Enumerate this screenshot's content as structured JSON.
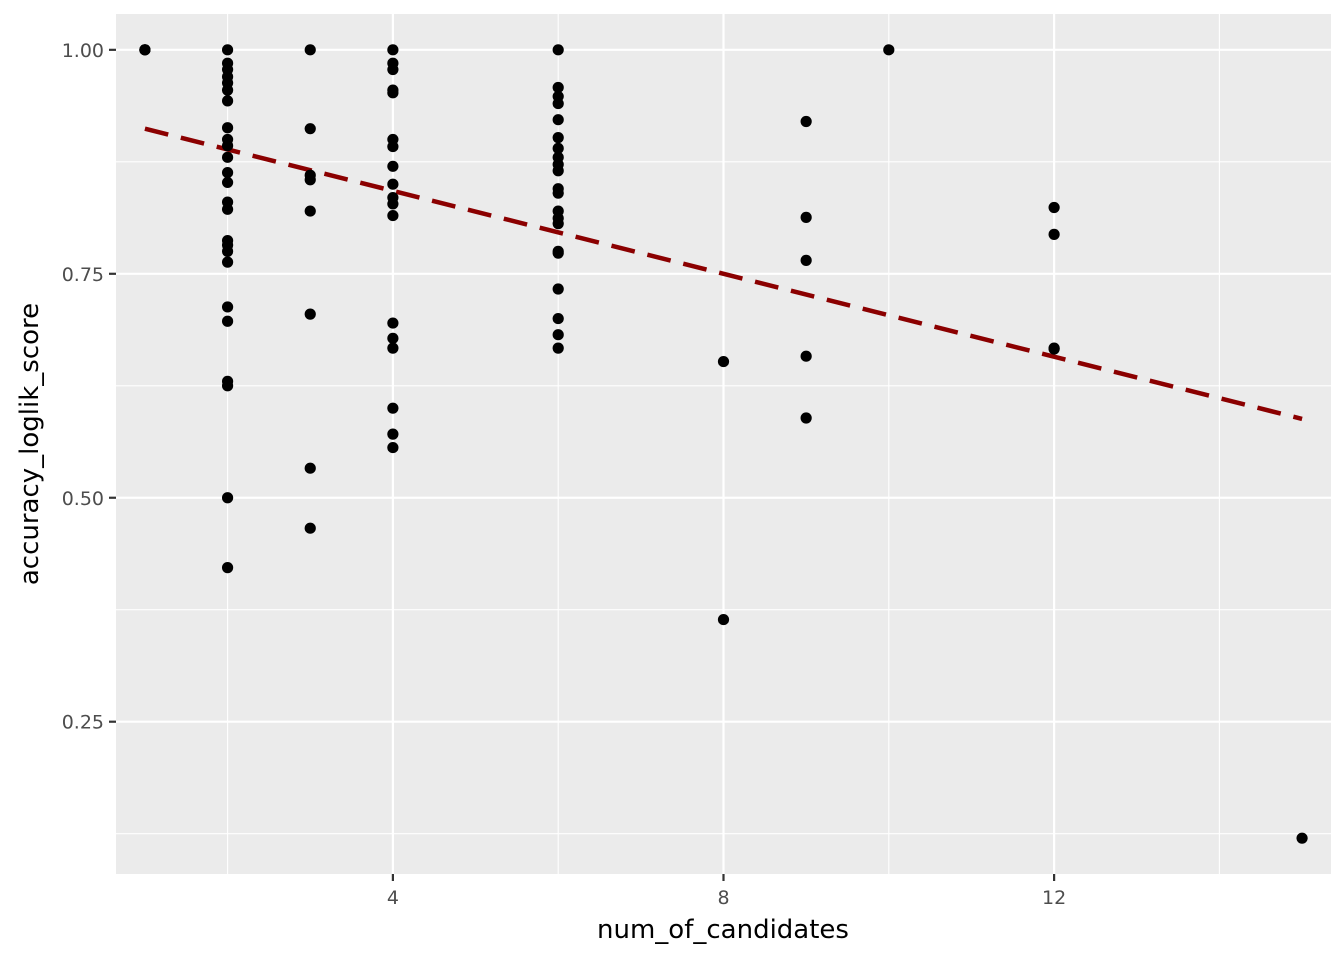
{
  "chart_data": {
    "type": "scatter",
    "xlabel": "num_of_candidates",
    "ylabel": "accuracy_loglik_score",
    "xlim": [
      0.65,
      15.35
    ],
    "ylim": [
      0.08,
      1.04
    ],
    "x_ticks": [
      4,
      8,
      12
    ],
    "x_tick_labels": [
      "4",
      "8",
      "12"
    ],
    "x_minor_ticks": [
      2,
      6,
      10,
      14
    ],
    "y_ticks": [
      0.25,
      0.5,
      0.75,
      1.0
    ],
    "y_tick_labels": [
      "0.25",
      "0.50",
      "0.75",
      "1.00"
    ],
    "y_minor_ticks": [
      0.125,
      0.375,
      0.625,
      0.875
    ],
    "grid": true,
    "legend": "none",
    "colors": {
      "panel": "#ebebeb",
      "grid": "#ffffff",
      "points": "#000000",
      "trend_line": "#8b0000"
    },
    "series": [
      {
        "points": [
          [
            1,
            1.0
          ],
          [
            1,
            1.0
          ],
          [
            1,
            1.0
          ],
          [
            2,
            1.0
          ],
          [
            2,
            0.985
          ],
          [
            2,
            0.978
          ],
          [
            2,
            0.97
          ],
          [
            2,
            0.963
          ],
          [
            2,
            0.955
          ],
          [
            2,
            0.943
          ],
          [
            2,
            0.913
          ],
          [
            2,
            0.9
          ],
          [
            2,
            0.893
          ],
          [
            2,
            0.88
          ],
          [
            2,
            0.863
          ],
          [
            2,
            0.852
          ],
          [
            2,
            0.83
          ],
          [
            2,
            0.822
          ],
          [
            2,
            0.787
          ],
          [
            2,
            0.782
          ],
          [
            2,
            0.775
          ],
          [
            2,
            0.763
          ],
          [
            2,
            0.713
          ],
          [
            2,
            0.697
          ],
          [
            2,
            0.63
          ],
          [
            2,
            0.625
          ],
          [
            2,
            0.5
          ],
          [
            2,
            0.422
          ],
          [
            3,
            1.0
          ],
          [
            3,
            0.912
          ],
          [
            3,
            0.86
          ],
          [
            3,
            0.855
          ],
          [
            3,
            0.82
          ],
          [
            3,
            0.705
          ],
          [
            3,
            0.533
          ],
          [
            3,
            0.466
          ],
          [
            4,
            1.0
          ],
          [
            4,
            0.985
          ],
          [
            4,
            0.978
          ],
          [
            4,
            0.955
          ],
          [
            4,
            0.952
          ],
          [
            4,
            0.9
          ],
          [
            4,
            0.892
          ],
          [
            4,
            0.87
          ],
          [
            4,
            0.85
          ],
          [
            4,
            0.835
          ],
          [
            4,
            0.828
          ],
          [
            4,
            0.815
          ],
          [
            4,
            0.695
          ],
          [
            4,
            0.678
          ],
          [
            4,
            0.667
          ],
          [
            4,
            0.6
          ],
          [
            4,
            0.571
          ],
          [
            4,
            0.556
          ],
          [
            6,
            1.0
          ],
          [
            6,
            0.958
          ],
          [
            6,
            0.948
          ],
          [
            6,
            0.94
          ],
          [
            6,
            0.922
          ],
          [
            6,
            0.902
          ],
          [
            6,
            0.89
          ],
          [
            6,
            0.88
          ],
          [
            6,
            0.872
          ],
          [
            6,
            0.865
          ],
          [
            6,
            0.845
          ],
          [
            6,
            0.84
          ],
          [
            6,
            0.82
          ],
          [
            6,
            0.812
          ],
          [
            6,
            0.806
          ],
          [
            6,
            0.775
          ],
          [
            6,
            0.773
          ],
          [
            6,
            0.733
          ],
          [
            6,
            0.7
          ],
          [
            6,
            0.682
          ],
          [
            6,
            0.667
          ],
          [
            8,
            0.652
          ],
          [
            8,
            0.364
          ],
          [
            9,
            0.92
          ],
          [
            9,
            0.813
          ],
          [
            9,
            0.765
          ],
          [
            9,
            0.658
          ],
          [
            9,
            0.589
          ],
          [
            10,
            1.0
          ],
          [
            12,
            0.824
          ],
          [
            12,
            0.794
          ],
          [
            12,
            0.667
          ],
          [
            12,
            0.666
          ],
          [
            15,
            0.12
          ]
        ]
      }
    ],
    "trend_line": {
      "style": "dashed",
      "x": [
        1,
        15
      ],
      "y": [
        0.912,
        0.588
      ]
    }
  }
}
